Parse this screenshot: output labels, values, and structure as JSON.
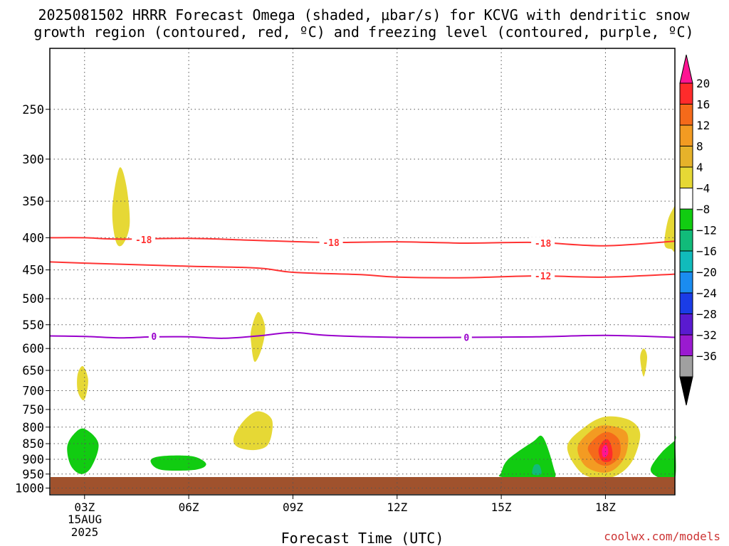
{
  "chart_data": {
    "type": "heatmap",
    "title_line1": "2025081502 HRRR Forecast Omega (shaded, μbar/s) for KCVG with dendritic snow",
    "title_line2": "growth region (contoured, red, ºC) and freezing level (contoured, purple, ºC)",
    "xlabel": "Forecast Time (UTC)",
    "ylabel": "",
    "credit": "coolwx.com/models",
    "date_line1": "15AUG",
    "date_line2": "2025",
    "x_ticks": [
      {
        "hour": 3,
        "label": "03Z"
      },
      {
        "hour": 6,
        "label": "06Z"
      },
      {
        "hour": 9,
        "label": "09Z"
      },
      {
        "hour": 12,
        "label": "12Z"
      },
      {
        "hour": 15,
        "label": "15Z"
      },
      {
        "hour": 18,
        "label": "18Z"
      }
    ],
    "xlim": [
      2,
      20
    ],
    "ylim_hpa": [
      1025,
      200
    ],
    "y_scale": "log",
    "y_ticks": [
      250,
      300,
      350,
      400,
      450,
      500,
      550,
      600,
      650,
      700,
      750,
      800,
      850,
      900,
      950,
      1000
    ],
    "grid": true,
    "colorbar": {
      "labels": [
        "20",
        "16",
        "12",
        "8",
        "4",
        "−4",
        "−8",
        "−12",
        "−16",
        "−20",
        "−24",
        "−28",
        "−32",
        "−36"
      ],
      "colors": [
        "#ff1493",
        "#ff2b2b",
        "#f56a1a",
        "#f39b22",
        "#e6b22a",
        "#e6d835",
        "#ffffff",
        "#11cc11",
        "#11bb7a",
        "#11bbbb",
        "#1a8cf0",
        "#1a3ce6",
        "#5a1ad0",
        "#9a1ad0",
        "#a0a0a0",
        "#000000"
      ]
    },
    "contours": [
      {
        "value": "-18",
        "color": "#ff3333",
        "points": [
          [
            2,
            400
          ],
          [
            3,
            400
          ],
          [
            4,
            402
          ],
          [
            6,
            401
          ],
          [
            8,
            404
          ],
          [
            10,
            407
          ],
          [
            12,
            406
          ],
          [
            14,
            408
          ],
          [
            16,
            407
          ],
          [
            18,
            412
          ],
          [
            20,
            405
          ]
        ],
        "labels": [
          [
            4.7,
            403
          ],
          [
            10.1,
            407
          ],
          [
            16.2,
            408
          ]
        ]
      },
      {
        "value": "-12",
        "color": "#ff3333",
        "points": [
          [
            2,
            437
          ],
          [
            3,
            439
          ],
          [
            6,
            444
          ],
          [
            8,
            447
          ],
          [
            9,
            454
          ],
          [
            11,
            458
          ],
          [
            12,
            462
          ],
          [
            14,
            463
          ],
          [
            16,
            460
          ],
          [
            18,
            462
          ],
          [
            20,
            457
          ]
        ],
        "labels": [
          [
            16.2,
            460
          ]
        ]
      },
      {
        "value": "0",
        "color": "#9900cc",
        "points": [
          [
            2,
            573
          ],
          [
            3,
            574
          ],
          [
            4,
            577
          ],
          [
            5,
            575
          ],
          [
            6,
            575
          ],
          [
            7,
            578
          ],
          [
            8,
            573
          ],
          [
            9,
            566
          ],
          [
            10,
            572
          ],
          [
            12,
            576
          ],
          [
            14,
            576
          ],
          [
            16,
            575
          ],
          [
            18,
            572
          ],
          [
            20,
            576
          ]
        ],
        "labels": [
          [
            5,
            574
          ],
          [
            14,
            576
          ]
        ]
      }
    ],
    "omega_regions": [
      {
        "fill": "#e6d835",
        "points": [
          [
            3.9,
            405
          ],
          [
            3.8,
            360
          ],
          [
            4.0,
            310
          ],
          [
            4.2,
            330
          ],
          [
            4.3,
            380
          ],
          [
            4.1,
            410
          ]
        ]
      },
      {
        "fill": "#e6d835",
        "points": [
          [
            7.8,
            560
          ],
          [
            8.0,
            525
          ],
          [
            8.2,
            555
          ],
          [
            8.1,
            600
          ],
          [
            7.9,
            630
          ],
          [
            7.8,
            590
          ]
        ]
      },
      {
        "fill": "#e6d835",
        "points": [
          [
            2.8,
            700
          ],
          [
            2.8,
            660
          ],
          [
            2.95,
            640
          ],
          [
            3.1,
            670
          ],
          [
            3.05,
            710
          ],
          [
            2.95,
            725
          ]
        ]
      },
      {
        "fill": "#e6d835",
        "points": [
          [
            7.3,
            830
          ],
          [
            7.6,
            780
          ],
          [
            8.0,
            755
          ],
          [
            8.4,
            780
          ],
          [
            8.3,
            850
          ],
          [
            7.9,
            870
          ],
          [
            7.4,
            860
          ]
        ]
      },
      {
        "fill": "#e6d835",
        "points": [
          [
            19.7,
            410
          ],
          [
            19.8,
            375
          ],
          [
            20.0,
            355
          ],
          [
            20.5,
            350
          ],
          [
            20.5,
            415
          ],
          [
            19.9,
            417
          ]
        ]
      },
      {
        "fill": "#e6d835",
        "points": [
          [
            19.0,
            620
          ],
          [
            19.1,
            600
          ],
          [
            19.2,
            620
          ],
          [
            19.1,
            665
          ]
        ]
      },
      {
        "fill": "#11cc11",
        "points": [
          [
            2.5,
            860
          ],
          [
            2.7,
            820
          ],
          [
            3.0,
            805
          ],
          [
            3.4,
            850
          ],
          [
            3.2,
            925
          ],
          [
            2.9,
            950
          ],
          [
            2.6,
            920
          ]
        ]
      },
      {
        "fill": "#11cc11",
        "points": [
          [
            4.9,
            905
          ],
          [
            5.2,
            890
          ],
          [
            6.1,
            890
          ],
          [
            6.5,
            915
          ],
          [
            6.2,
            935
          ],
          [
            5.2,
            935
          ]
        ]
      },
      {
        "fill": "#11cc11",
        "points": [
          [
            15.0,
            945
          ],
          [
            15.2,
            900
          ],
          [
            15.9,
            845
          ],
          [
            16.2,
            830
          ],
          [
            16.5,
            925
          ],
          [
            16.5,
            965
          ],
          [
            15.8,
            968
          ],
          [
            15.0,
            960
          ]
        ]
      },
      {
        "fill": "#11bb7a",
        "points": [
          [
            15.9,
            950
          ],
          [
            15.95,
            920
          ],
          [
            16.1,
            920
          ],
          [
            16.15,
            950
          ]
        ]
      },
      {
        "fill": "#11cc11",
        "points": [
          [
            19.3,
            935
          ],
          [
            19.6,
            880
          ],
          [
            20.2,
            840
          ],
          [
            20.5,
            835
          ],
          [
            20.5,
            965
          ],
          [
            19.6,
            965
          ]
        ]
      },
      {
        "fill": "#11bb7a",
        "points": [
          [
            20.1,
            890
          ],
          [
            20.5,
            870
          ],
          [
            20.5,
            940
          ],
          [
            20.2,
            950
          ]
        ]
      },
      {
        "fill": "#e6d835",
        "points": [
          [
            16.9,
            860
          ],
          [
            17.4,
            800
          ],
          [
            18.0,
            770
          ],
          [
            18.7,
            780
          ],
          [
            19.0,
            820
          ],
          [
            18.8,
            900
          ],
          [
            18.4,
            950
          ],
          [
            17.9,
            965
          ],
          [
            17.3,
            945
          ]
        ]
      },
      {
        "fill": "#f39b22",
        "points": [
          [
            17.2,
            860
          ],
          [
            17.6,
            810
          ],
          [
            18.0,
            795
          ],
          [
            18.6,
            815
          ],
          [
            18.6,
            880
          ],
          [
            18.3,
            930
          ],
          [
            17.9,
            945
          ],
          [
            17.4,
            920
          ]
        ]
      },
      {
        "fill": "#f56a1a",
        "points": [
          [
            17.5,
            860
          ],
          [
            17.8,
            825
          ],
          [
            18.1,
            815
          ],
          [
            18.4,
            840
          ],
          [
            18.4,
            890
          ],
          [
            18.1,
            920
          ],
          [
            17.8,
            915
          ],
          [
            17.6,
            890
          ]
        ]
      },
      {
        "fill": "#ff2b2b",
        "points": [
          [
            17.8,
            870
          ],
          [
            17.95,
            840
          ],
          [
            18.1,
            840
          ],
          [
            18.2,
            875
          ],
          [
            18.15,
            905
          ],
          [
            17.9,
            905
          ]
        ]
      },
      {
        "fill": "#ff1493",
        "points": [
          [
            17.9,
            870
          ],
          [
            17.97,
            855
          ],
          [
            18.05,
            858
          ],
          [
            18.08,
            880
          ],
          [
            18.0,
            893
          ],
          [
            17.92,
            890
          ]
        ]
      }
    ]
  }
}
